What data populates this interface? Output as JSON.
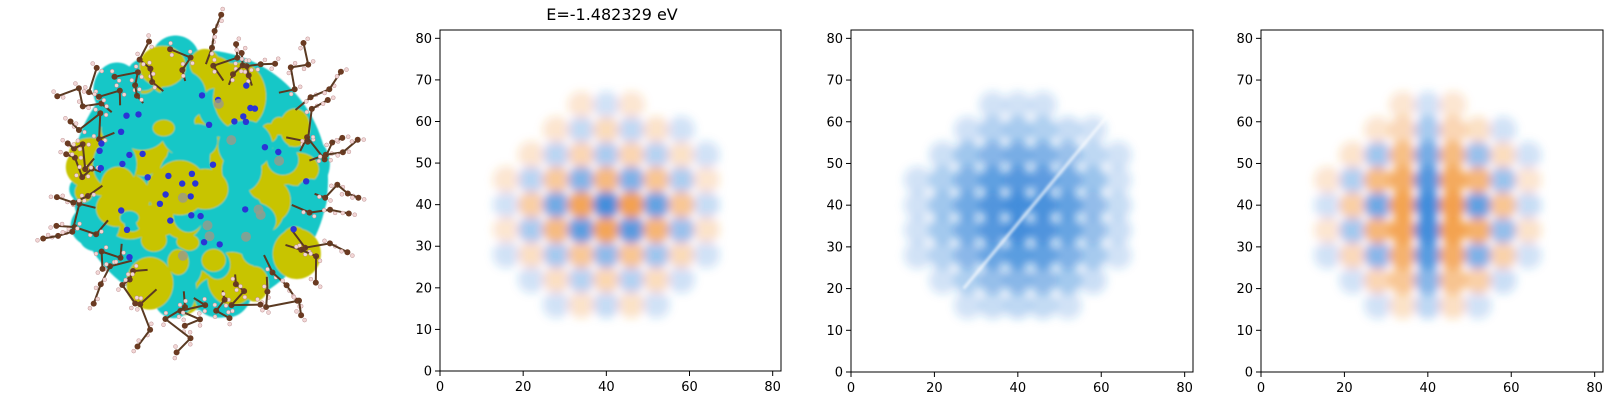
{
  "figure": {
    "render_colors": {
      "molecule_lobe_yellow": "#c8c400",
      "molecule_lobe_cyan": "#19c7c7",
      "carbon_atom": "#6b3b22",
      "hydrogen_atom": "#f2d6d6",
      "nitrogen_atom": "#2a34d6",
      "bond_brown": "#5a3a22"
    }
  },
  "chart_data": [
    {
      "type": "heatmap",
      "title": "E=-1.482329 eV",
      "xlim": [
        0,
        82
      ],
      "ylim": [
        0,
        82
      ],
      "xticks": [
        "0",
        "20",
        "40",
        "60",
        "80"
      ],
      "yticks": [
        "0",
        "10",
        "20",
        "30",
        "40",
        "50",
        "60",
        "70",
        "80"
      ],
      "colormap": {
        "positive": "#1f77d4",
        "negative": "#f08a24"
      },
      "grid": false,
      "legend": false,
      "pattern": "rotated"
    },
    {
      "type": "heatmap",
      "title": "",
      "xlim": [
        0,
        82
      ],
      "ylim": [
        0,
        82
      ],
      "xticks": [
        "0",
        "20",
        "40",
        "60",
        "80"
      ],
      "yticks": [
        "0",
        "10",
        "20",
        "30",
        "40",
        "50",
        "60",
        "70",
        "80"
      ],
      "colormap": {
        "positive": "#1f77d4",
        "negative": "#f08a24"
      },
      "grid": false,
      "legend": false,
      "pattern": "diagonal"
    },
    {
      "type": "heatmap",
      "title": "",
      "xlim": [
        0,
        82
      ],
      "ylim": [
        0,
        82
      ],
      "xticks": [
        "0",
        "20",
        "40",
        "60",
        "80"
      ],
      "yticks": [
        "0",
        "10",
        "20",
        "30",
        "40",
        "50",
        "60",
        "70",
        "80"
      ],
      "colormap": {
        "positive": "#1f77d4",
        "negative": "#f08a24"
      },
      "grid": false,
      "legend": false,
      "pattern": "square"
    }
  ]
}
